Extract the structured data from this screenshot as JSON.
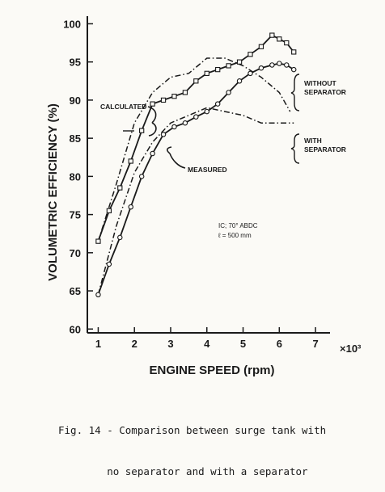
{
  "chart_data": {
    "type": "line",
    "xlabel": "ENGINE SPEED (rpm)",
    "ylabel": "VOLUMETRIC EFFICIENCY (%)",
    "x_multiplier_label": "×10³",
    "xlim": [
      0.7,
      7.4
    ],
    "ylim": [
      59.5,
      101
    ],
    "x_ticks": [
      "1",
      "2",
      "3",
      "4",
      "5",
      "6",
      "7"
    ],
    "y_ticks": [
      "60",
      "65",
      "70",
      "75",
      "80",
      "85",
      "90",
      "95",
      "100"
    ],
    "grid": false,
    "series": [
      {
        "group": "WITHOUT SEPARATOR",
        "kind": "calculated",
        "style": "dash-dot",
        "x": [
          1.0,
          1.5,
          2.0,
          2.5,
          3.0,
          3.5,
          4.0,
          4.5,
          5.0,
          5.5,
          6.0,
          6.3
        ],
        "y": [
          71.5,
          79.0,
          87.0,
          91.0,
          93.0,
          93.5,
          95.5,
          95.5,
          94.5,
          93.0,
          91.0,
          88.5
        ]
      },
      {
        "group": "WITHOUT SEPARATOR",
        "kind": "measured",
        "style": "solid-square",
        "x": [
          1.0,
          1.3,
          1.6,
          1.9,
          2.2,
          2.5,
          2.8,
          3.1,
          3.4,
          3.7,
          4.0,
          4.3,
          4.6,
          4.9,
          5.2,
          5.5,
          5.8,
          6.0,
          6.2,
          6.4
        ],
        "y": [
          71.5,
          75.5,
          78.5,
          82.0,
          86.0,
          89.5,
          90.0,
          90.5,
          91.0,
          92.5,
          93.5,
          94.0,
          94.5,
          95.0,
          96.0,
          97.0,
          98.5,
          98.0,
          97.5,
          96.3
        ]
      },
      {
        "group": "WITH SEPARATOR",
        "kind": "calculated",
        "style": "dash-dot",
        "x": [
          1.0,
          1.5,
          2.0,
          2.5,
          3.0,
          3.5,
          4.0,
          4.5,
          5.0,
          5.5,
          6.0,
          6.4
        ],
        "y": [
          64.5,
          73.5,
          80.5,
          84.5,
          87.0,
          88.0,
          89.0,
          88.5,
          88.0,
          87.0,
          87.0,
          87.0
        ]
      },
      {
        "group": "WITH SEPARATOR",
        "kind": "measured",
        "style": "solid-circle",
        "x": [
          1.0,
          1.3,
          1.6,
          1.9,
          2.2,
          2.5,
          2.8,
          3.1,
          3.4,
          3.7,
          4.0,
          4.3,
          4.6,
          4.9,
          5.2,
          5.5,
          5.8,
          6.0,
          6.2,
          6.4
        ],
        "y": [
          64.5,
          68.5,
          72.0,
          76.0,
          80.0,
          83.0,
          85.5,
          86.5,
          87.0,
          87.8,
          88.5,
          89.5,
          91.0,
          92.5,
          93.5,
          94.2,
          94.6,
          94.8,
          94.6,
          94.0
        ]
      }
    ],
    "annotations": {
      "calculated": "CALCULATED",
      "measured": "MEASURED",
      "without_1": "WITHOUT",
      "without_2": "SEPARATOR",
      "with_1": "WITH",
      "with_2": "SEPARATOR",
      "cond_1": "IC; 70° ABDC",
      "cond_2": "ℓ = 500 mm"
    }
  },
  "caption": {
    "line1": "Fig. 14 - Comparison between surge tank with",
    "line2": "        no separator and with a separator"
  }
}
